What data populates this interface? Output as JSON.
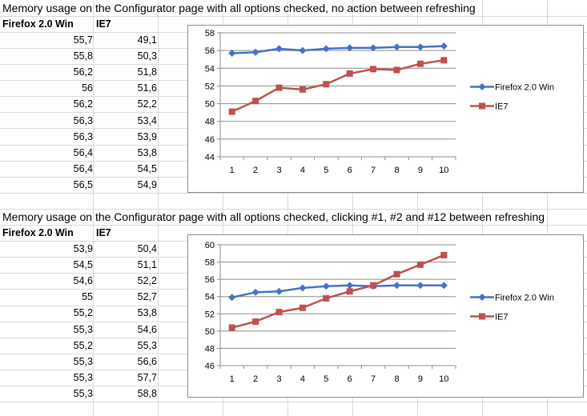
{
  "sheet": {
    "block1": {
      "title": "Memory usage on the Configurator page with all options checked, no action between refreshing",
      "headers": [
        "Firefox 2.0 Win",
        "IE7"
      ],
      "rows": [
        [
          "55,7",
          "49,1"
        ],
        [
          "55,8",
          "50,3"
        ],
        [
          "56,2",
          "51,8"
        ],
        [
          "56",
          "51,6"
        ],
        [
          "56,2",
          "52,2"
        ],
        [
          "56,3",
          "53,4"
        ],
        [
          "56,3",
          "53,9"
        ],
        [
          "56,4",
          "53,8"
        ],
        [
          "56,4",
          "54,5"
        ],
        [
          "56,5",
          "54,9"
        ]
      ]
    },
    "block2": {
      "title": "Memory usage on the Configurator page with all options checked, clicking #1, #2 and #12 between refreshing",
      "headers": [
        "Firefox 2.0 Win",
        "IE7"
      ],
      "rows": [
        [
          "53,9",
          "50,4"
        ],
        [
          "54,5",
          "51,1"
        ],
        [
          "54,6",
          "52,2"
        ],
        [
          "55",
          "52,7"
        ],
        [
          "55,2",
          "53,8"
        ],
        [
          "55,3",
          "54,6"
        ],
        [
          "55,2",
          "55,3"
        ],
        [
          "55,3",
          "56,6"
        ],
        [
          "55,3",
          "57,7"
        ],
        [
          "55,3",
          "58,8"
        ]
      ]
    }
  },
  "colors": {
    "firefox": "#4472c4",
    "ie7": "#c0504d",
    "grid": "#8c8c8c"
  },
  "chart_data": [
    {
      "type": "line",
      "x": [
        1,
        2,
        3,
        4,
        5,
        6,
        7,
        8,
        9,
        10
      ],
      "categories": [
        "1",
        "2",
        "3",
        "4",
        "5",
        "6",
        "7",
        "8",
        "9",
        "10"
      ],
      "ylim": [
        44,
        58
      ],
      "yticks": [
        44,
        46,
        48,
        50,
        52,
        54,
        56,
        58
      ],
      "grid": true,
      "legend": "right",
      "series": [
        {
          "name": "Firefox 2.0 Win",
          "marker": "diamond",
          "values": [
            55.7,
            55.8,
            56.2,
            56,
            56.2,
            56.3,
            56.3,
            56.4,
            56.4,
            56.5
          ]
        },
        {
          "name": "IE7",
          "marker": "square",
          "values": [
            49.1,
            50.3,
            51.8,
            51.6,
            52.2,
            53.4,
            53.9,
            53.8,
            54.5,
            54.9
          ]
        }
      ]
    },
    {
      "type": "line",
      "x": [
        1,
        2,
        3,
        4,
        5,
        6,
        7,
        8,
        9,
        10
      ],
      "categories": [
        "1",
        "2",
        "3",
        "4",
        "5",
        "6",
        "7",
        "8",
        "9",
        "10"
      ],
      "ylim": [
        46,
        60
      ],
      "yticks": [
        46,
        48,
        50,
        52,
        54,
        56,
        58,
        60
      ],
      "grid": true,
      "legend": "right",
      "series": [
        {
          "name": "Firefox 2.0 Win",
          "marker": "diamond",
          "values": [
            53.9,
            54.5,
            54.6,
            55,
            55.2,
            55.3,
            55.2,
            55.3,
            55.3,
            55.3
          ]
        },
        {
          "name": "IE7",
          "marker": "square",
          "values": [
            50.4,
            51.1,
            52.2,
            52.7,
            53.8,
            54.6,
            55.3,
            56.6,
            57.7,
            58.8
          ]
        }
      ]
    }
  ]
}
